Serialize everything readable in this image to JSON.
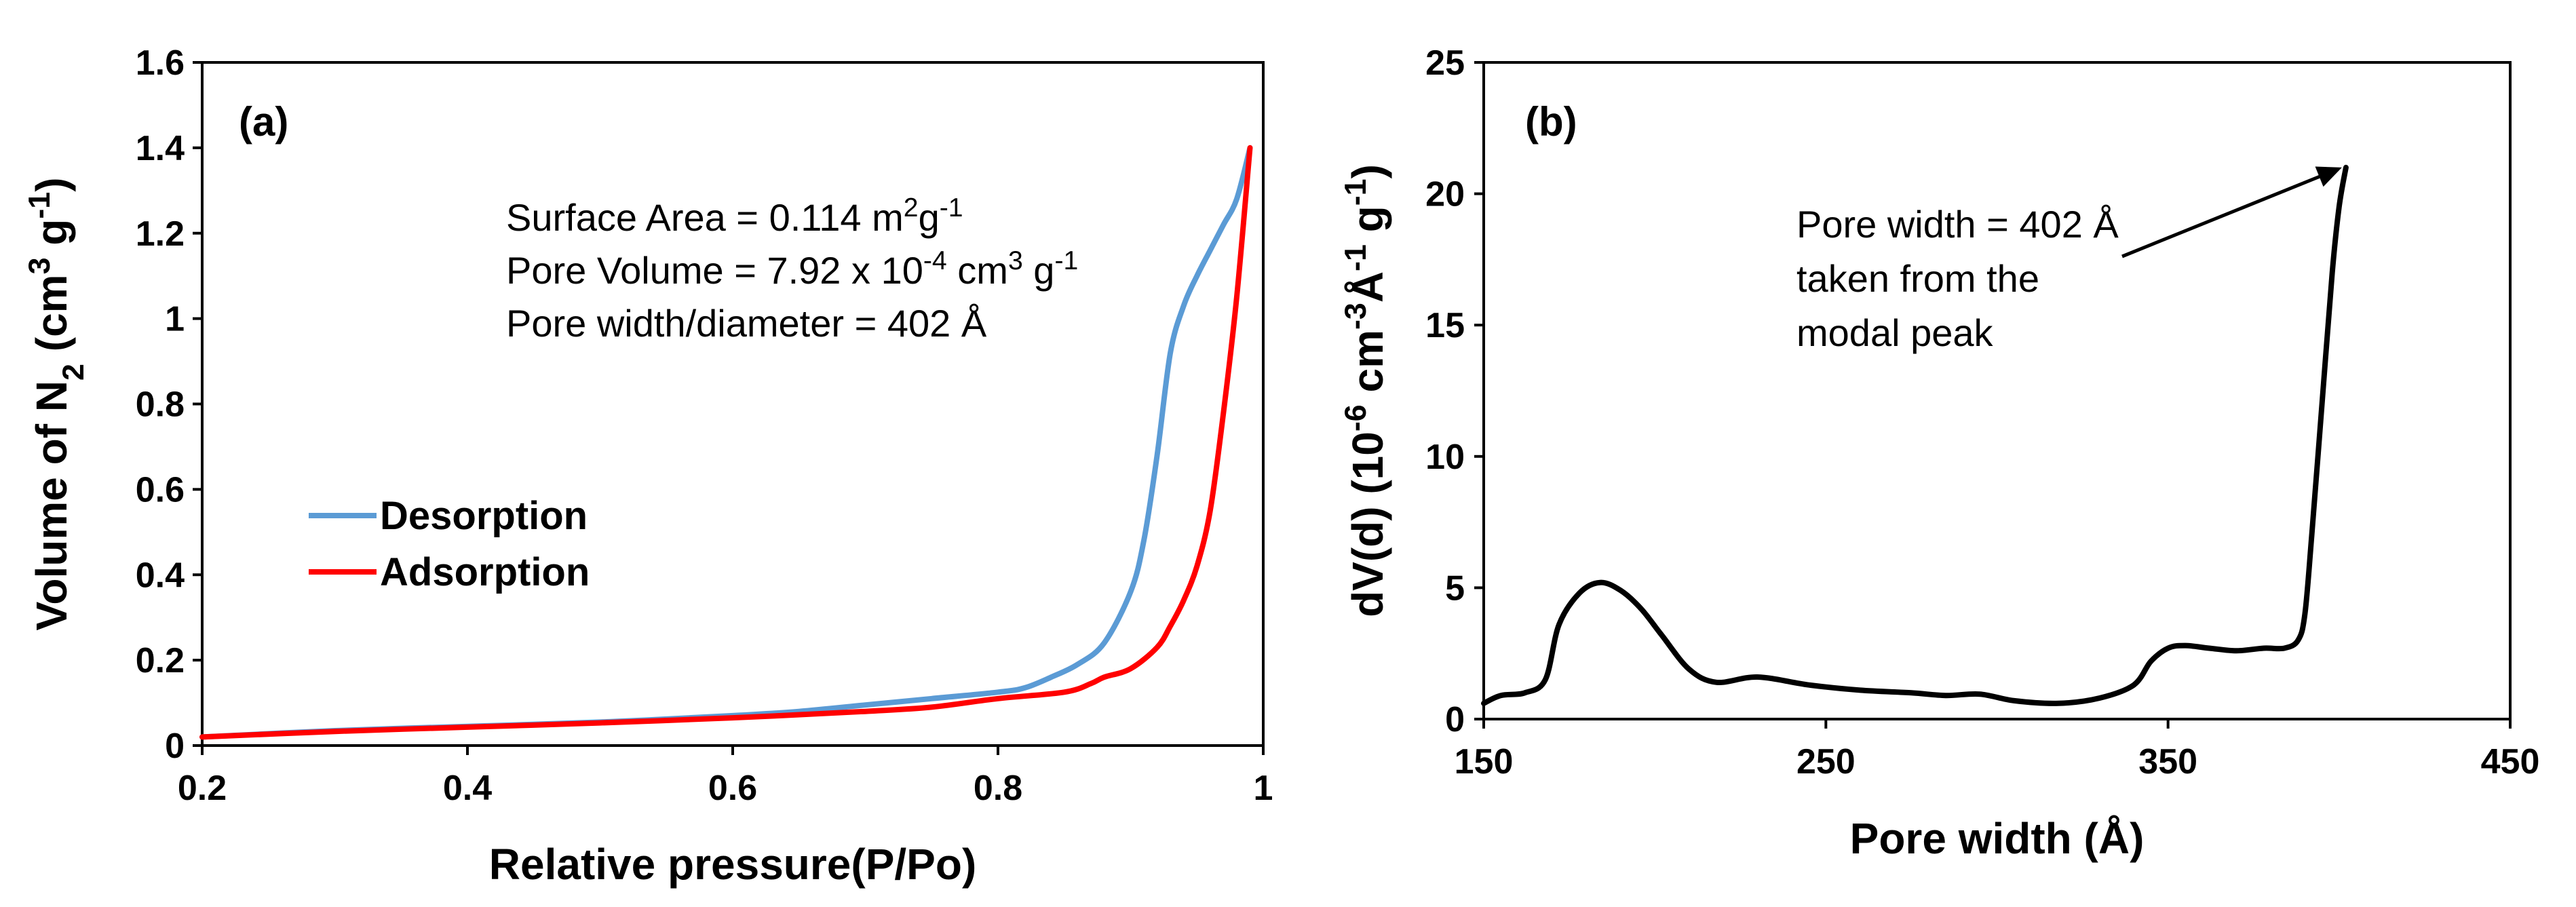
{
  "chart_data": [
    {
      "type": "line",
      "panel_label": "(a)",
      "title": "",
      "xlabel": "Relative pressure(P/Po)",
      "ylabel_parts": [
        "Volume of N",
        "2",
        " (cm",
        "3",
        " g",
        "-1",
        ")"
      ],
      "xlim": [
        0.2,
        1
      ],
      "ylim": [
        0,
        1.6
      ],
      "xticks": [
        "0.2",
        "0.4",
        "0.6",
        "0.8",
        "1"
      ],
      "yticks": [
        "0",
        "0.2",
        "0.4",
        "0.6",
        "0.8",
        "1",
        "1.2",
        "1.4",
        "1.6"
      ],
      "annotations": {
        "surface_area": [
          "Surface Area = 0.114 m",
          "2",
          "g",
          "-1"
        ],
        "pore_volume": [
          "Pore Volume = 7.92 x 10",
          "-4",
          " cm",
          "3",
          " g",
          "-1"
        ],
        "pore_width": [
          "Pore width/diameter = 402 Å"
        ]
      },
      "legend_position": "middle-left",
      "series": [
        {
          "name": "Desorption",
          "color": "#5b9bd5",
          "x": [
            0.2,
            0.3,
            0.4,
            0.5,
            0.6,
            0.65,
            0.7,
            0.75,
            0.8,
            0.82,
            0.84,
            0.86,
            0.88,
            0.9,
            0.91,
            0.92,
            0.93,
            0.94,
            0.95,
            0.96,
            0.97,
            0.98,
            0.99
          ],
          "y": [
            0.02,
            0.035,
            0.045,
            0.055,
            0.07,
            0.08,
            0.095,
            0.11,
            0.125,
            0.135,
            0.16,
            0.19,
            0.24,
            0.36,
            0.48,
            0.68,
            0.92,
            1.03,
            1.1,
            1.16,
            1.22,
            1.28,
            1.4
          ]
        },
        {
          "name": "Adsorption",
          "color": "#ff0000",
          "x": [
            0.2,
            0.3,
            0.4,
            0.5,
            0.6,
            0.7,
            0.75,
            0.8,
            0.85,
            0.87,
            0.88,
            0.9,
            0.92,
            0.93,
            0.94,
            0.95,
            0.96,
            0.97,
            0.98,
            0.99
          ],
          "y": [
            0.02,
            0.033,
            0.043,
            0.053,
            0.065,
            0.08,
            0.09,
            0.11,
            0.125,
            0.145,
            0.16,
            0.18,
            0.23,
            0.28,
            0.34,
            0.42,
            0.55,
            0.78,
            1.05,
            1.4
          ]
        }
      ]
    },
    {
      "type": "line",
      "panel_label": "(b)",
      "title": "",
      "xlabel": "Pore width (Å)",
      "ylabel_parts": [
        "dV(d) (10",
        "-6",
        " cm",
        "-3",
        "Å",
        "-1",
        " g",
        "-1",
        ")"
      ],
      "xlim": [
        150,
        450
      ],
      "ylim": [
        0,
        25
      ],
      "xticks": [
        "150",
        "250",
        "350",
        "450"
      ],
      "yticks": [
        "0",
        "5",
        "10",
        "15",
        "20",
        "25"
      ],
      "annotation_lines": [
        "Pore width = 402 Å",
        "taken from the",
        "modal peak"
      ],
      "arrow_target": [
        402,
        21
      ],
      "series": [
        {
          "name": "dV(d)",
          "color": "#000000",
          "x": [
            150,
            155,
            162,
            168,
            172,
            178,
            184,
            190,
            196,
            202,
            210,
            218,
            230,
            245,
            260,
            275,
            285,
            295,
            305,
            318,
            330,
            340,
            345,
            350,
            355,
            362,
            370,
            378,
            384,
            388,
            390,
            392,
            395,
            398,
            400,
            402
          ],
          "y": [
            0.6,
            0.9,
            1.0,
            1.5,
            3.6,
            4.8,
            5.2,
            4.9,
            4.2,
            3.2,
            1.9,
            1.4,
            1.6,
            1.3,
            1.1,
            1.0,
            0.9,
            0.95,
            0.7,
            0.6,
            0.8,
            1.3,
            2.2,
            2.7,
            2.8,
            2.7,
            2.6,
            2.7,
            2.7,
            3.0,
            4.0,
            7.0,
            12.0,
            17.0,
            19.5,
            21.0
          ]
        }
      ]
    }
  ]
}
